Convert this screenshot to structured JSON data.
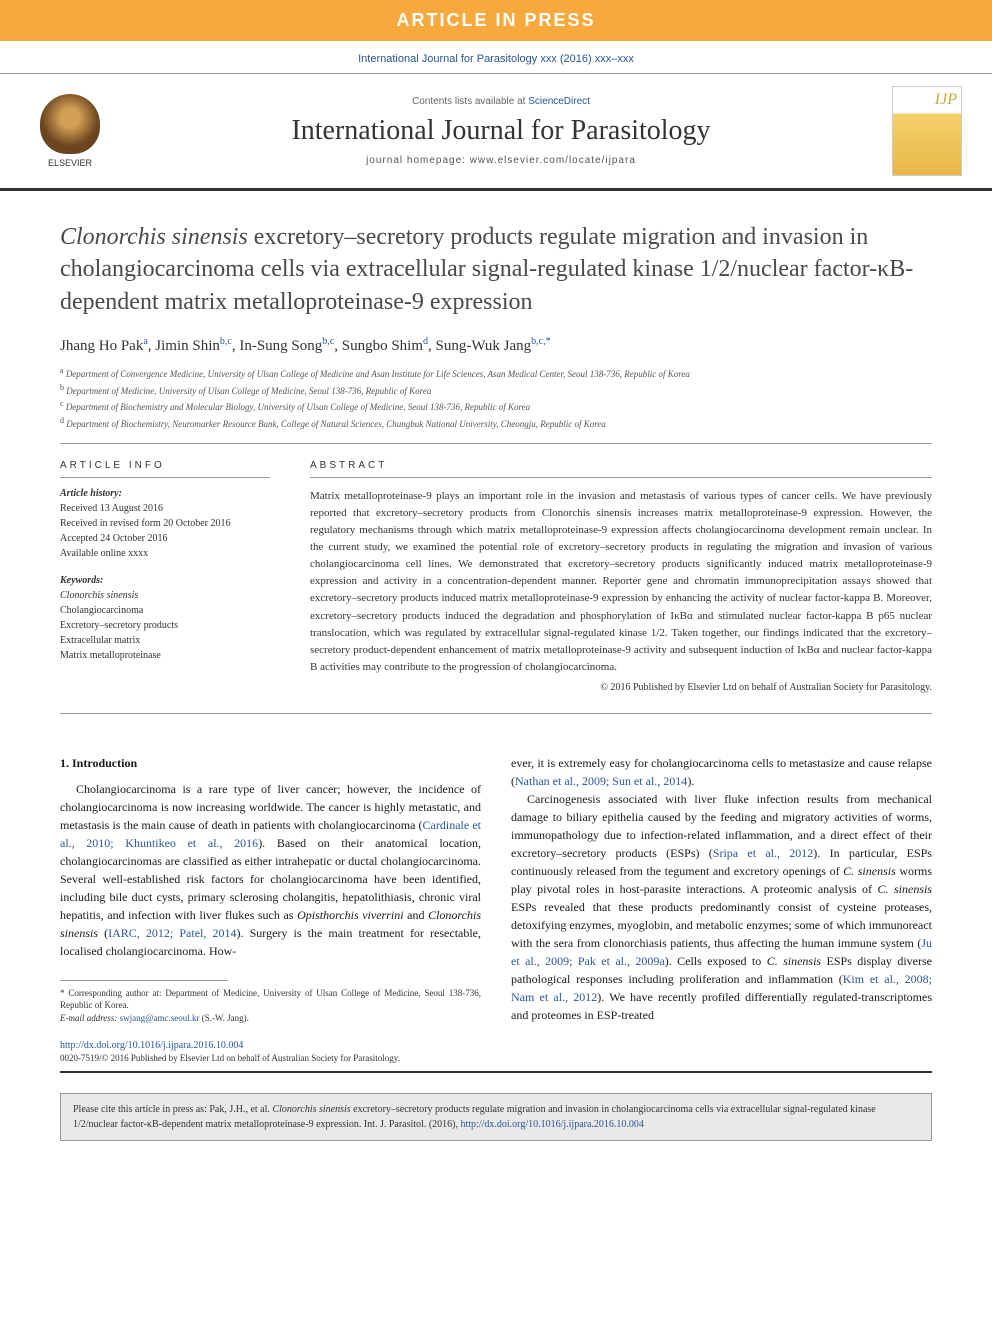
{
  "banner": {
    "text": "ARTICLE IN PRESS"
  },
  "journalRef": "International Journal for Parasitology xxx (2016) xxx–xxx",
  "header": {
    "contentsPrefix": "Contents lists available at ",
    "contentsLink": "ScienceDirect",
    "journalName": "International Journal for Parasitology",
    "homepage": "journal homepage: www.elsevier.com/locate/ijpara",
    "elsevierLabel": "ELSEVIER",
    "ijpLabel": "IJP"
  },
  "article": {
    "titlePrefixItalic": "Clonorchis sinensis",
    "titleRest": " excretory–secretory products regulate migration and invasion in cholangiocarcinoma cells via extracellular signal-regulated kinase 1/2/nuclear factor-κB-dependent matrix metalloproteinase-9 expression",
    "authors": [
      {
        "name": "Jhang Ho Pak",
        "sup": "a"
      },
      {
        "name": "Jimin Shin",
        "sup": "b,c"
      },
      {
        "name": "In-Sung Song",
        "sup": "b,c"
      },
      {
        "name": "Sungbo Shim",
        "sup": "d"
      },
      {
        "name": "Sung-Wuk Jang",
        "sup": "b,c,*"
      }
    ],
    "affiliations": [
      {
        "sup": "a",
        "text": "Department of Convergence Medicine, University of Ulsan College of Medicine and Asan Institute for Life Sciences, Asan Medical Center, Seoul 138-736, Republic of Korea"
      },
      {
        "sup": "b",
        "text": "Department of Medicine, University of Ulsan College of Medicine, Seoul 138-736, Republic of Korea"
      },
      {
        "sup": "c",
        "text": "Department of Biochemistry and Molecular Biology, University of Ulsan College of Medicine, Seoul 138-736, Republic of Korea"
      },
      {
        "sup": "d",
        "text": "Department of Biochemistry, Neuromarker Resource Bank, College of Natural Sciences, Chungbuk National University, Cheongju, Republic of Korea"
      }
    ]
  },
  "info": {
    "heading": "ARTICLE INFO",
    "historyLabel": "Article history:",
    "history": "Received 13 August 2016\nReceived in revised form 20 October 2016\nAccepted 24 October 2016\nAvailable online xxxx",
    "keywordsLabel": "Keywords:",
    "keywords": "Clonorchis sinensis\nCholangiocarcinoma\nExcretory–secretory products\nExtracellular matrix\nMatrix metalloproteinase"
  },
  "abstract": {
    "heading": "ABSTRACT",
    "text": "Matrix metalloproteinase-9 plays an important role in the invasion and metastasis of various types of cancer cells. We have previously reported that excretory–secretory products from Clonorchis sinensis increases matrix metalloproteinase-9 expression. However, the regulatory mechanisms through which matrix metalloproteinase-9 expression affects cholangiocarcinoma development remain unclear. In the current study, we examined the potential role of excretory–secretory products in regulating the migration and invasion of various cholangiocarcinoma cell lines. We demonstrated that excretory–secretory products significantly induced matrix metalloproteinase-9 expression and activity in a concentration-dependent manner. Reporter gene and chromatin immunoprecipitation assays showed that excretory–secretory products induced matrix metalloproteinase-9 expression by enhancing the activity of nuclear factor-kappa B. Moreover, excretory–secretory products induced the degradation and phosphorylation of IκBα and stimulated nuclear factor-kappa B p65 nuclear translocation, which was regulated by extracellular signal-regulated kinase 1/2. Taken together, our findings indicated that the excretory–secretory product-dependent enhancement of matrix metalloproteinase-9 activity and subsequent induction of IκBα and nuclear factor-kappa B activities may contribute to the progression of cholangiocarcinoma.",
    "copyright": "© 2016 Published by Elsevier Ltd on behalf of Australian Society for Parasitology."
  },
  "body": {
    "introHeading": "1. Introduction",
    "col1p1a": "Cholangiocarcinoma is a rare type of liver cancer; however, the incidence of cholangiocarcinoma is now increasing worldwide. The cancer is highly metastatic, and metastasis is the main cause of death in patients with cholangiocarcinoma (",
    "col1p1link1": "Cardinale et al., 2010; Khuntikeo et al., 2016",
    "col1p1b": "). Based on their anatomical location, cholangiocarcinomas are classified as either intrahepatic or ductal cholangiocarcinoma. Several well-established risk factors for cholangiocarcinoma have been identified, including bile duct cysts, primary sclerosing cholangitis, hepatolithiasis, chronic viral hepatitis, and infection with liver flukes such as ",
    "col1p1italic1": "Opisthorchis viverrini",
    "col1p1c": " and ",
    "col1p1italic2": "Clonorchis sinensis",
    "col1p1d": " (",
    "col1p1link2": "IARC, 2012; Patel, 2014",
    "col1p1e": "). Surgery is the main treatment for resectable, localised cholangiocarcinoma. How-",
    "col2p1a": "ever, it is extremely easy for cholangiocarcinoma cells to metastasize and cause relapse (",
    "col2p1link1": "Nathan et al., 2009; Sun et al., 2014",
    "col2p1b": ").",
    "col2p2a": "Carcinogenesis associated with liver fluke infection results from mechanical damage to biliary epithelia caused by the feeding and migratory activities of worms, immunopathology due to infection-related inflammation, and a direct effect of their excretory–secretory products (ESPs) (",
    "col2p2link1": "Sripa et al., 2012",
    "col2p2b": "). In particular, ESPs continuously released from the tegument and excretory openings of ",
    "col2p2italic1": "C. sinensis",
    "col2p2c": " worms play pivotal roles in host-parasite interactions. A proteomic analysis of ",
    "col2p2italic2": "C. sinensis",
    "col2p2d": " ESPs revealed that these products predominantly consist of cysteine proteases, detoxifying enzymes, myoglobin, and metabolic enzymes; some of which immunoreact with the sera from clonorchiasis patients, thus affecting the human immune system (",
    "col2p2link2": "Ju et al., 2009; Pak et al., 2009a",
    "col2p2e": "). Cells exposed to ",
    "col2p2italic3": "C. sinensis",
    "col2p2f": " ESPs display diverse pathological responses including proliferation and inflammation (",
    "col2p2link3": "Kim et al., 2008; Nam et al., 2012",
    "col2p2g": "). We have recently profiled differentially regulated-transcriptomes and proteomes in ESP-treated"
  },
  "footnote": {
    "corr": "* Corresponding author at: Department of Medicine, University of Ulsan College of Medicine, Seoul 138-736, Republic of Korea.",
    "emailLabel": "E-mail address: ",
    "email": "swjang@amc.seoul.kr",
    "emailSuffix": " (S.-W. Jang)."
  },
  "doi": {
    "url": "http://dx.doi.org/10.1016/j.ijpara.2016.10.004",
    "issn": "0020-7519/© 2016 Published by Elsevier Ltd on behalf of Australian Society for Parasitology."
  },
  "citeBox": {
    "prefix": "Please cite this article in press as: Pak, J.H., et al. ",
    "italic": "Clonorchis sinensis",
    "middle": " excretory–secretory products regulate migration and invasion in cholangiocarcinoma cells via extracellular signal-regulated kinase 1/2/nuclear factor-κB-dependent matrix metalloproteinase-9 expression. Int. J. Parasitol. (2016), ",
    "link": "http://dx.doi.org/10.1016/j.ijpara.2016.10.004"
  },
  "colors": {
    "bannerBg": "#f7a93e",
    "link": "#2a5599",
    "text": "#333333"
  }
}
